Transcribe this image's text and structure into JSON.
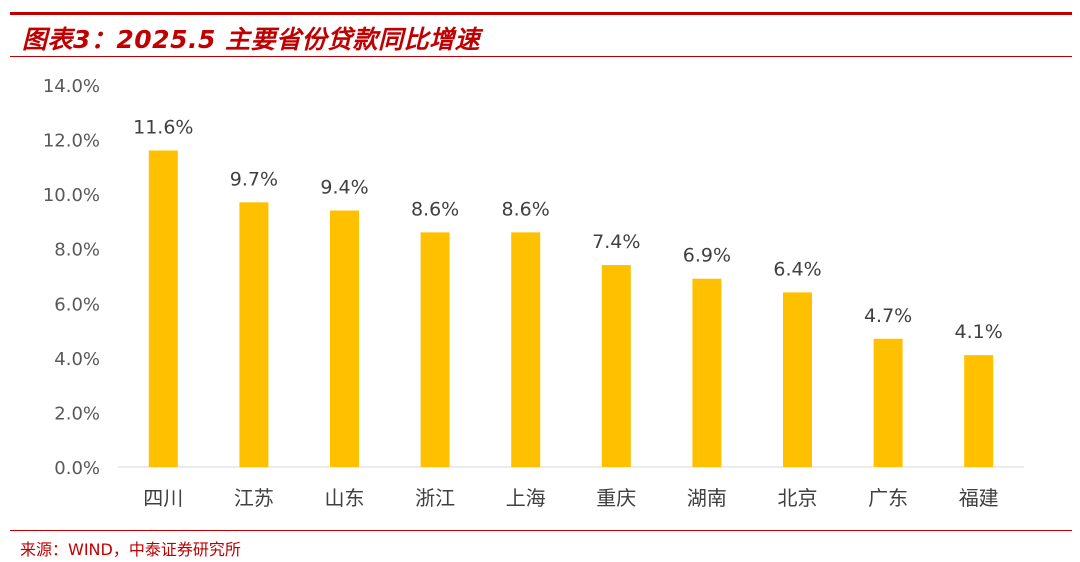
{
  "title": "图表3：2025.5 主要省份贷款同比增速",
  "source": "来源：WIND，中泰证券研究所",
  "colors": {
    "accent": "#c00000",
    "bar": "#ffc000",
    "axis_text": "#595959"
  },
  "chart_data": {
    "type": "bar",
    "title": "",
    "xlabel": "",
    "ylabel": "",
    "categories": [
      "四川",
      "江苏",
      "山东",
      "浙江",
      "上海",
      "重庆",
      "湖南",
      "北京",
      "广东",
      "福建"
    ],
    "values": [
      11.6,
      9.7,
      9.4,
      8.6,
      8.6,
      7.4,
      6.9,
      6.4,
      4.7,
      4.1
    ],
    "data_labels": [
      "11.6%",
      "9.7%",
      "9.4%",
      "8.6%",
      "8.6%",
      "7.4%",
      "6.9%",
      "6.4%",
      "4.7%",
      "4.1%"
    ],
    "y_ticks": [
      0,
      2,
      4,
      6,
      8,
      10,
      12,
      14
    ],
    "y_tick_labels": [
      "0.0%",
      "2.0%",
      "4.0%",
      "6.0%",
      "8.0%",
      "10.0%",
      "12.0%",
      "14.0%"
    ],
    "ylim": [
      0,
      14
    ],
    "grid": false,
    "legend": "none"
  }
}
